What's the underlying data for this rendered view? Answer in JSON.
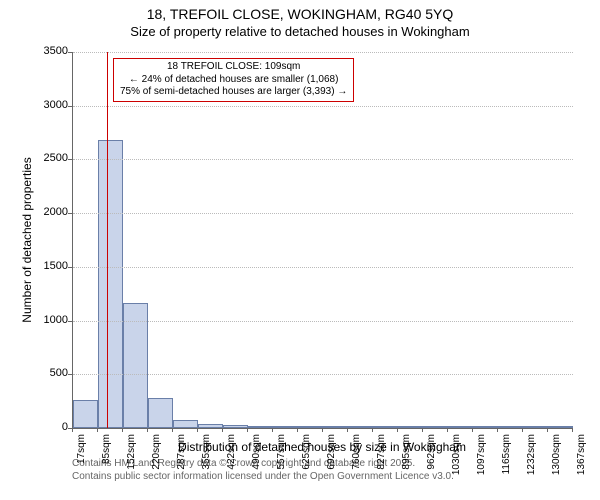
{
  "title_line1": "18, TREFOIL CLOSE, WOKINGHAM, RG40 5YQ",
  "title_line2": "Size of property relative to detached houses in Wokingham",
  "ylabel": "Number of detached properties",
  "xlabel": "Distribution of detached houses by size in Wokingham",
  "chart": {
    "type": "histogram",
    "background_color": "#ffffff",
    "grid_color": "#bbbbbb",
    "axis_color": "#666666",
    "bar_fill": "#c9d4ea",
    "bar_border": "#6a7fa8",
    "ylim": [
      0,
      3500
    ],
    "ytick_step": 500,
    "yticks": [
      0,
      500,
      1000,
      1500,
      2000,
      2500,
      3000,
      3500
    ],
    "xtick_labels": [
      "17sqm",
      "85sqm",
      "152sqm",
      "220sqm",
      "287sqm",
      "355sqm",
      "422sqm",
      "490sqm",
      "557sqm",
      "625sqm",
      "692sqm",
      "760sqm",
      "827sqm",
      "895sqm",
      "962sqm",
      "1030sqm",
      "1097sqm",
      "1165sqm",
      "1232sqm",
      "1300sqm",
      "1367sqm"
    ],
    "xtick_fontsize": 10,
    "ytick_fontsize": 11,
    "label_fontsize": 12,
    "title_fontsize": 14,
    "values": [
      260,
      2680,
      1160,
      280,
      75,
      40,
      30,
      20,
      15,
      10,
      10,
      5,
      5,
      5,
      5,
      5,
      5,
      3,
      3,
      3
    ],
    "marker": {
      "color": "#cc0000",
      "x_value": 109,
      "x_domain": [
        17,
        1367
      ],
      "annotation_lines": [
        "18 TREFOIL CLOSE: 109sqm",
        "← 24% of detached houses are smaller (1,068)",
        "75% of semi-detached houses are larger (3,393) →"
      ]
    }
  },
  "footer_line1": "Contains HM Land Registry data © Crown copyright and database right 2025.",
  "footer_line2": "Contains public sector information licensed under the Open Government Licence v3.0."
}
